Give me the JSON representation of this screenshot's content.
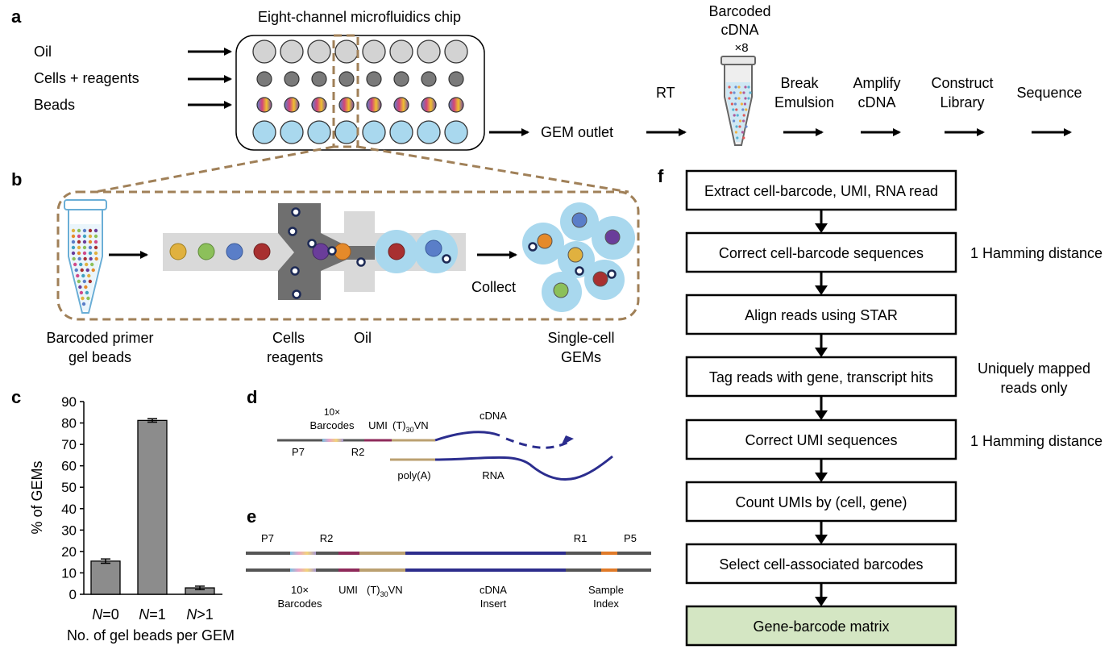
{
  "panels": {
    "a": "a",
    "b": "b",
    "c": "c",
    "d": "d",
    "e": "e",
    "f": "f"
  },
  "panel_a": {
    "chip_title": "Eight-channel microfluidics chip",
    "inputs": [
      "Oil",
      "Cells + reagents",
      "Beads"
    ],
    "gem_outlet": "GEM outlet",
    "rt": "RT",
    "tube_label_line1": "Barcoded",
    "tube_label_line2": "cDNA",
    "tube_multiplier": "×8",
    "steps": [
      {
        "line1": "Break",
        "line2": "Emulsion"
      },
      {
        "line1": "Amplify",
        "line2": "cDNA"
      },
      {
        "line1": "Construct",
        "line2": "Library"
      },
      {
        "line1": "Sequence",
        "line2": ""
      }
    ]
  },
  "panel_b": {
    "collect": "Collect",
    "label_beads_1": "Barcoded primer",
    "label_beads_2": "gel beads",
    "label_cells_1": "Cells",
    "label_cells_2": "reagents",
    "label_oil": "Oil",
    "label_gems_1": "Single-cell",
    "label_gems_2": "GEMs"
  },
  "chart_data": {
    "type": "bar",
    "categories": [
      "N=0",
      "N=1",
      "N>1"
    ],
    "category_prefix": "N",
    "category_suffixes": [
      "=0",
      "=1",
      ">1"
    ],
    "values": [
      15.5,
      81.2,
      3.0
    ],
    "errors": [
      1.0,
      0.8,
      0.8
    ],
    "ylim": [
      0,
      90
    ],
    "yticks": [
      0,
      10,
      20,
      30,
      40,
      50,
      60,
      70,
      80,
      90
    ],
    "ylabel": "% of GEMs",
    "xlabel": "No. of gel beads per GEM",
    "grid": false,
    "bar_color": "#8c8c8c"
  },
  "panel_d": {
    "barcodes_1": "10×",
    "barcodes_2": "Barcodes",
    "umi": "UMI",
    "t30_pre": "(T)",
    "t30_sub": "30",
    "t30_post": "VN",
    "cdna": "cDNA",
    "p7": "P7",
    "r2": "R2",
    "polya": "poly(A)",
    "rna": "RNA"
  },
  "panel_e": {
    "p7": "P7",
    "r2": "R2",
    "r1": "R1",
    "p5": "P5",
    "barcodes_1": "10×",
    "barcodes_2": "Barcodes",
    "umi": "UMI",
    "t30_pre": "(T)",
    "t30_sub": "30",
    "t30_post": "VN",
    "insert_1": "cDNA",
    "insert_2": "Insert",
    "index_1": "Sample",
    "index_2": "Index"
  },
  "panel_f": {
    "steps": [
      "Extract cell-barcode, UMI, RNA read",
      "Correct cell-barcode sequences",
      "Align reads using STAR",
      "Tag reads with gene, transcript hits",
      "Correct UMI sequences",
      "Count UMIs by (cell, gene)",
      "Select cell-associated barcodes",
      "Gene-barcode matrix"
    ],
    "note_barcode": "1 Hamming distance",
    "note_tag_1": "Uniquely mapped",
    "note_tag_2": "reads only",
    "note_umi": "1 Hamming distance",
    "final_fill": "#d4e6c3"
  },
  "colors": {
    "dashed_outline": "#a08058",
    "droplet_blue": "#a9d8ee",
    "chip_grey": "#d3d3d3",
    "dark_grey": "#7a7a7a",
    "strand_blue": "#2d2d8c",
    "umi_purple": "#8e2a5a",
    "polyT_tan": "#bba070",
    "index_orange": "#e07a28",
    "rna_navy": "#2b2d8e"
  }
}
